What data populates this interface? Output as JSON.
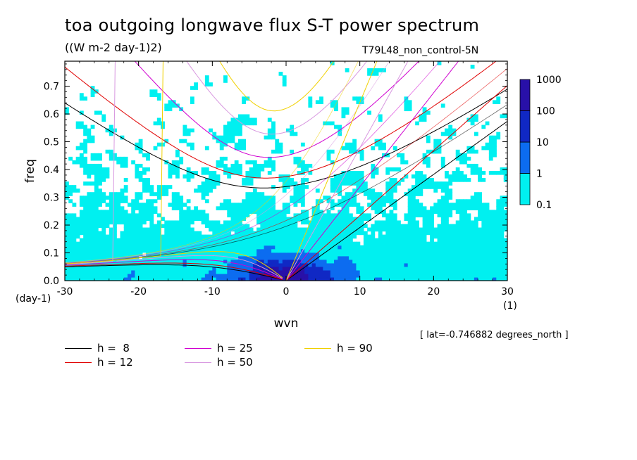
{
  "header": {
    "title": "toa outgoing longwave flux S-T power spectrum",
    "subtitle": "((W m-2 day-1)2)",
    "run_name": "T79L48_non_control-5N",
    "lat_info": "[ lat=-0.746882 degrees_north ]"
  },
  "chart_data": {
    "type": "heatmap",
    "title": "toa outgoing longwave flux S-T power spectrum",
    "xlabel": "wvn",
    "ylabel": "freq",
    "xunit": "(1)",
    "yunit": "(day-1)",
    "xlim": [
      -30,
      30
    ],
    "ylim": [
      0,
      0.79
    ],
    "x_ticks": [
      -30,
      -20,
      -10,
      0,
      10,
      20,
      30
    ],
    "x_tick_labels": [
      "-30",
      "-20",
      "-10",
      "0",
      "10",
      "20",
      "30"
    ],
    "y_ticks": [
      0.0,
      0.1,
      0.2,
      0.3,
      0.4,
      0.5,
      0.6,
      0.7
    ],
    "y_tick_labels": [
      "0.0",
      "0.1",
      "0.2",
      "0.3",
      "0.4",
      "0.5",
      "0.6",
      "0.7"
    ],
    "colorbar": {
      "levels": [
        "0.1",
        "1",
        "10",
        "100",
        "1000"
      ],
      "colors": [
        "#00f0f0",
        "#0c6cf0",
        "#1028c4",
        "#2810a8"
      ]
    },
    "dispersion_legend": [
      {
        "label": "h =  8",
        "color": "#000000"
      },
      {
        "label": "h = 12",
        "color": "#e00000"
      },
      {
        "label": "h = 25",
        "color": "#d000d0"
      },
      {
        "label": "h = 50",
        "color": "#d898e0"
      },
      {
        "label": "h = 90",
        "color": "#f0d000"
      }
    ],
    "equivalent_depths": [
      8,
      12,
      25,
      50,
      90
    ],
    "background_color": "#ffffff"
  }
}
